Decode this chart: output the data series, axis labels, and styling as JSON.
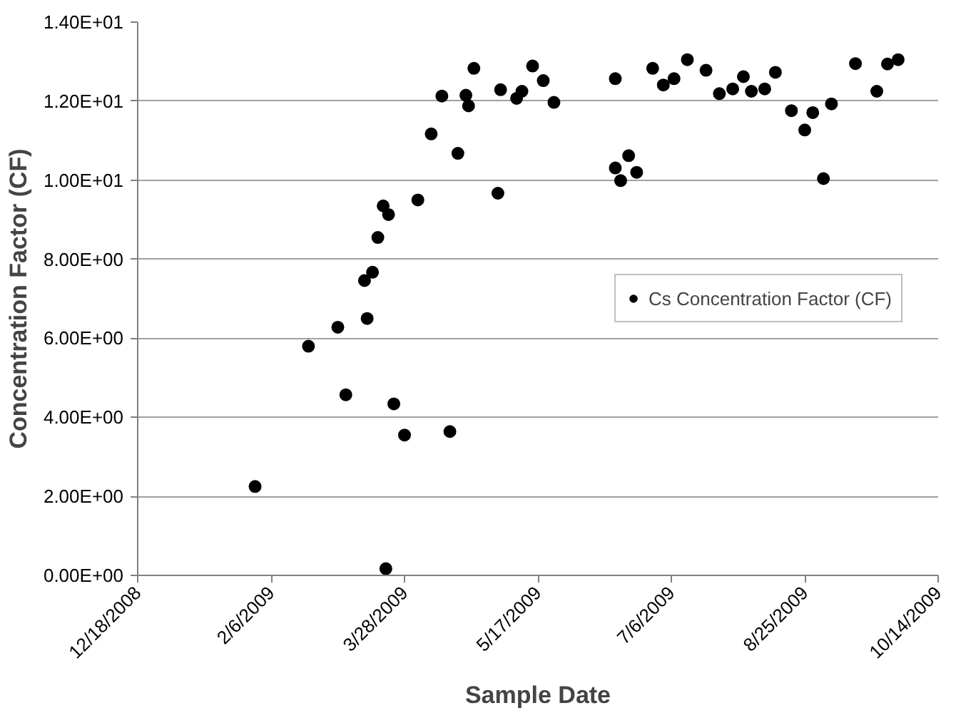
{
  "chart_data": {
    "type": "scatter",
    "xlabel": "Sample Date",
    "ylabel": "Concentration Factor (CF)",
    "xlim": [
      "2008-12-18",
      "2009-10-14"
    ],
    "xticks": [
      {
        "value": "2008-12-18",
        "label": "12/18/2008"
      },
      {
        "value": "2009-02-06",
        "label": "2/6/2009"
      },
      {
        "value": "2009-03-28",
        "label": "3/28/2009"
      },
      {
        "value": "2009-05-17",
        "label": "5/17/2009"
      },
      {
        "value": "2009-07-06",
        "label": "7/6/2009"
      },
      {
        "value": "2009-08-25",
        "label": "8/25/2009"
      },
      {
        "value": "2009-10-14",
        "label": "10/14/2009"
      }
    ],
    "ylim": [
      0,
      14
    ],
    "yticks": [
      {
        "value": 0,
        "label": "0.00E+00"
      },
      {
        "value": 2,
        "label": "2.00E+00"
      },
      {
        "value": 4,
        "label": "4.00E+00"
      },
      {
        "value": 6,
        "label": "6.00E+00"
      },
      {
        "value": 8,
        "label": "8.00E+00"
      },
      {
        "value": 10,
        "label": "1.00E+01"
      },
      {
        "value": 12,
        "label": "1.20E+01"
      },
      {
        "value": 14,
        "label": "1.40E+01"
      }
    ],
    "grid": "y",
    "legend": "right",
    "marker": "circle",
    "series": [
      {
        "name": "Cs Concentration Factor (CF)",
        "color": "#000000",
        "x": [
          "2009-01-31",
          "2009-02-20",
          "2009-03-03",
          "2009-03-06",
          "2009-03-13",
          "2009-03-14",
          "2009-03-16",
          "2009-03-18",
          "2009-03-20",
          "2009-03-22",
          "2009-03-21",
          "2009-03-24",
          "2009-03-28",
          "2009-04-02",
          "2009-04-07",
          "2009-04-11",
          "2009-04-14",
          "2009-04-17",
          "2009-04-20",
          "2009-04-21",
          "2009-04-23",
          "2009-05-02",
          "2009-05-03",
          "2009-05-09",
          "2009-05-11",
          "2009-05-15",
          "2009-05-19",
          "2009-05-23",
          "2009-06-15",
          "2009-06-15",
          "2009-06-17",
          "2009-06-20",
          "2009-06-23",
          "2009-06-29",
          "2009-07-03",
          "2009-07-07",
          "2009-07-12",
          "2009-07-19",
          "2009-07-24",
          "2009-07-29",
          "2009-08-02",
          "2009-08-05",
          "2009-08-10",
          "2009-08-14",
          "2009-08-20",
          "2009-08-25",
          "2009-08-28",
          "2009-09-01",
          "2009-09-04",
          "2009-09-13",
          "2009-09-21",
          "2009-09-25",
          "2009-09-29"
        ],
        "values": [
          2.25,
          5.8,
          6.28,
          4.57,
          7.46,
          6.5,
          7.67,
          8.55,
          9.35,
          9.13,
          0.17,
          4.34,
          3.55,
          9.5,
          11.17,
          12.13,
          3.64,
          10.68,
          12.15,
          11.88,
          12.83,
          9.67,
          12.29,
          12.07,
          12.25,
          12.89,
          12.52,
          11.97,
          12.57,
          10.31,
          9.99,
          10.62,
          10.2,
          12.83,
          12.41,
          12.57,
          13.05,
          12.78,
          12.19,
          12.31,
          12.62,
          12.25,
          12.31,
          12.73,
          11.76,
          11.27,
          11.71,
          10.04,
          11.93,
          12.95,
          12.25,
          12.94,
          13.05
        ]
      }
    ]
  }
}
